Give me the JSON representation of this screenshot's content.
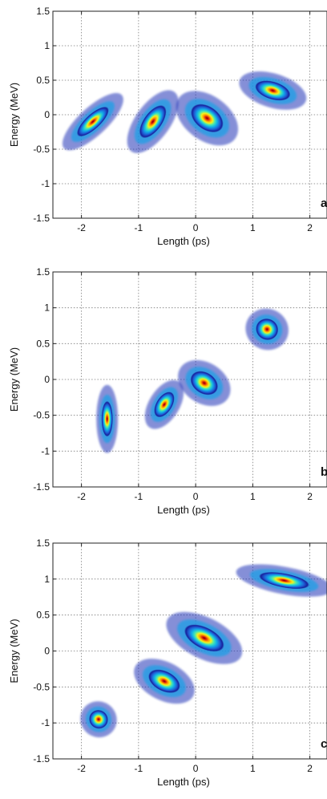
{
  "chart_data": [
    {
      "type": "heatmap",
      "panel_label": "a)",
      "xlabel": "Length (ps)",
      "ylabel": "Energy (MeV)",
      "xlim": [
        -2.5,
        2.3
      ],
      "ylim": [
        -1.5,
        1.5
      ],
      "xticks": [
        "-2",
        "-1",
        "0",
        "1",
        "2"
      ],
      "yticks": [
        "1.5",
        "1",
        "0.5",
        "0",
        "-0.5",
        "-1",
        "-1.5"
      ],
      "grid": true,
      "blobs": [
        {
          "x": -1.8,
          "y": -0.1,
          "sx": 0.13,
          "sy": 0.3,
          "tilt": -0.9
        },
        {
          "x": -0.75,
          "y": -0.1,
          "sx": 0.16,
          "sy": 0.28,
          "tilt": -0.6
        },
        {
          "x": 0.2,
          "y": -0.05,
          "sx": 0.32,
          "sy": 0.17,
          "tilt": -0.6
        },
        {
          "x": 1.35,
          "y": 0.35,
          "sx": 0.32,
          "sy": 0.13,
          "tilt": -0.25
        }
      ]
    },
    {
      "type": "heatmap",
      "panel_label": "b)",
      "xlabel": "Length (ps)",
      "ylabel": "Energy (MeV)",
      "xlim": [
        -2.5,
        2.3
      ],
      "ylim": [
        -1.5,
        1.5
      ],
      "xticks": [
        "-2",
        "-1",
        "0",
        "1",
        "2"
      ],
      "yticks": [
        "1.5",
        "1",
        "0.5",
        "0",
        "-0.5",
        "-1",
        "-1.5"
      ],
      "grid": true,
      "blobs": [
        {
          "x": -1.55,
          "y": -0.55,
          "sx": 0.1,
          "sy": 0.25,
          "tilt": 0
        },
        {
          "x": -0.55,
          "y": -0.35,
          "sx": 0.14,
          "sy": 0.2,
          "tilt": -0.5
        },
        {
          "x": 0.15,
          "y": -0.05,
          "sx": 0.26,
          "sy": 0.15,
          "tilt": -0.5
        },
        {
          "x": 1.25,
          "y": 0.7,
          "sx": 0.2,
          "sy": 0.15,
          "tilt": -0.4
        }
      ]
    },
    {
      "type": "heatmap",
      "panel_label": "c",
      "xlabel": "Length (ps)",
      "ylabel": "Energy (MeV)",
      "xlim": [
        -2.5,
        2.3
      ],
      "ylim": [
        -1.5,
        1.5
      ],
      "xticks": [
        "-2",
        "-1",
        "0",
        "1",
        "2"
      ],
      "yticks": [
        "1.5",
        "1",
        "0.5",
        "0",
        "-0.5",
        "-1",
        "-1.5"
      ],
      "grid": true,
      "blobs": [
        {
          "x": -1.7,
          "y": -0.95,
          "sx": 0.17,
          "sy": 0.13,
          "tilt": -0.6
        },
        {
          "x": -0.55,
          "y": -0.42,
          "sx": 0.3,
          "sy": 0.14,
          "tilt": -0.4
        },
        {
          "x": 0.15,
          "y": 0.18,
          "sx": 0.38,
          "sy": 0.15,
          "tilt": -0.4
        },
        {
          "x": 1.55,
          "y": 0.98,
          "sx": 0.45,
          "sy": 0.1,
          "tilt": -0.15
        }
      ]
    }
  ]
}
